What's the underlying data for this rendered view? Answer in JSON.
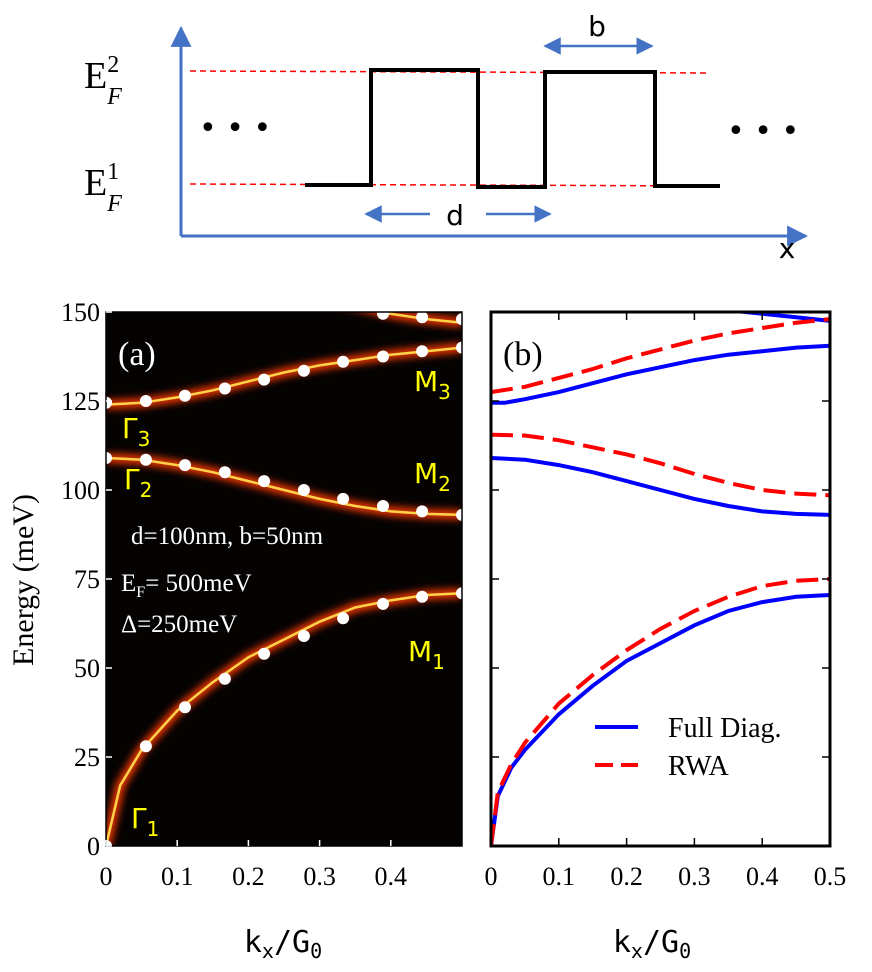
{
  "top_diagram": {
    "ef2_main": "E",
    "ef2_sup": "2",
    "ef2_sub": "F",
    "ef1_main": "E",
    "ef1_sup": "1",
    "ef1_sub": "F",
    "b_label": "b",
    "d_label": "d",
    "x_label": "x",
    "ellipsis": "• • •"
  },
  "colors": {
    "axis_blue": "#4472c4",
    "ref_red": "#ff0000",
    "profile_black": "#000000",
    "label_yellow": "#ffff00",
    "full_diag": "#0000ff",
    "rwa": "#ff0000"
  },
  "panel_a": {
    "panel_label": "(a)",
    "params_line1": "d=100nm, b=50nm",
    "params_line2_main": "E",
    "params_line2_sub": "F",
    "params_line2_rest": "= 500meV",
    "params_line3": "Δ=250meV",
    "ylabel": "Energy (meV)",
    "xlabel_main": "k",
    "xlabel_sub1": "x",
    "xlabel_mid": "/G",
    "xlabel_sub2": "0",
    "point_labels": [
      {
        "main": "Γ",
        "sub": "1"
      },
      {
        "main": "Γ",
        "sub": "2"
      },
      {
        "main": "Γ",
        "sub": "3"
      },
      {
        "main": "M",
        "sub": "1"
      },
      {
        "main": "M",
        "sub": "2"
      },
      {
        "main": "M",
        "sub": "3"
      }
    ]
  },
  "panel_b": {
    "panel_label": "(b)",
    "xlabel_main": "k",
    "xlabel_sub1": "x",
    "xlabel_mid": "/G",
    "xlabel_sub2": "0",
    "legend": [
      "Full Diag.",
      "RWA"
    ]
  },
  "chart_data": [
    {
      "type": "heatmap",
      "panel": "(a)",
      "xlabel": "kx/G0",
      "ylabel": "Energy (meV)",
      "xlim": [
        0,
        0.5
      ],
      "ylim": [
        0,
        150
      ],
      "xticks": [
        "0",
        "0.1",
        "0.2",
        "0.3",
        "0.4"
      ],
      "yticks": [
        "0",
        "25",
        "50",
        "75",
        "100",
        "125",
        "150"
      ],
      "bands": [
        {
          "x": [
            0,
            0.02,
            0.05,
            0.1,
            0.15,
            0.2,
            0.25,
            0.3,
            0.35,
            0.4,
            0.45,
            0.5
          ],
          "y": [
            0,
            17,
            27,
            38,
            46,
            53,
            58,
            63,
            67,
            69,
            70.5,
            71
          ]
        },
        {
          "x": [
            0,
            0.05,
            0.1,
            0.15,
            0.2,
            0.25,
            0.3,
            0.35,
            0.4,
            0.45,
            0.5
          ],
          "y": [
            109,
            108.5,
            107,
            105,
            102.5,
            100,
            97.5,
            95.5,
            94,
            93.3,
            93
          ]
        },
        {
          "x": [
            0,
            0.05,
            0.1,
            0.15,
            0.2,
            0.25,
            0.3,
            0.35,
            0.4,
            0.45,
            0.5
          ],
          "y": [
            124,
            124.5,
            126,
            128,
            130.5,
            133,
            135,
            136.5,
            138,
            139,
            140
          ]
        },
        {
          "x": [
            0.3,
            0.35,
            0.4,
            0.45,
            0.5
          ],
          "y": [
            154,
            152,
            149.5,
            148,
            147
          ]
        }
      ],
      "markers": [
        {
          "x": [
            0.0,
            0.056,
            0.111,
            0.167,
            0.222,
            0.278,
            0.333,
            0.389,
            0.444,
            0.5
          ],
          "y": [
            0,
            28,
            39,
            47,
            54,
            59,
            64,
            68,
            70,
            71
          ]
        },
        {
          "x": [
            0.0,
            0.056,
            0.111,
            0.167,
            0.222,
            0.278,
            0.333,
            0.389,
            0.444,
            0.5
          ],
          "y": [
            109,
            108.5,
            107,
            105,
            102.5,
            100,
            97.5,
            95.5,
            94,
            93
          ]
        },
        {
          "x": [
            0.0,
            0.056,
            0.111,
            0.167,
            0.222,
            0.278,
            0.333,
            0.389,
            0.444,
            0.5
          ],
          "y": [
            124.5,
            125,
            126.5,
            128.5,
            131,
            133.5,
            136,
            137.5,
            139,
            140
          ]
        },
        {
          "x": [
            0.389,
            0.444,
            0.5
          ],
          "y": [
            149.5,
            148.5,
            148
          ]
        }
      ]
    },
    {
      "type": "line",
      "panel": "(b)",
      "xlabel": "kx/G0",
      "xlim": [
        0,
        0.5
      ],
      "ylim": [
        0,
        150
      ],
      "xticks": [
        "0",
        "0.1",
        "0.2",
        "0.3",
        "0.4",
        "0.5"
      ],
      "series": [
        {
          "name": "Full Diag.",
          "style": "solid",
          "segments": [
            {
              "x": [
                0,
                0.01,
                0.03,
                0.05,
                0.1,
                0.15,
                0.2,
                0.25,
                0.3,
                0.35,
                0.4,
                0.45,
                0.5
              ],
              "y": [
                0,
                14,
                22,
                27,
                37,
                45,
                52,
                57,
                62,
                66,
                68.5,
                70,
                70.5
              ]
            },
            {
              "x": [
                0,
                0.05,
                0.1,
                0.15,
                0.2,
                0.25,
                0.3,
                0.35,
                0.4,
                0.45,
                0.5
              ],
              "y": [
                109,
                108.5,
                107,
                105,
                102.5,
                100,
                97.5,
                95.5,
                94,
                93.3,
                93
              ]
            },
            {
              "x": [
                0,
                0.02,
                0.05,
                0.1,
                0.15,
                0.2,
                0.25,
                0.3,
                0.35,
                0.4,
                0.45,
                0.5
              ],
              "y": [
                124.5,
                124.5,
                125.5,
                127.5,
                130,
                132.5,
                134.5,
                136.5,
                138,
                139,
                140,
                140.5
              ]
            },
            {
              "x": [
                0.35,
                0.4,
                0.45,
                0.5
              ],
              "y": [
                150.5,
                149.5,
                148.5,
                147.5
              ]
            }
          ]
        },
        {
          "name": "RWA",
          "style": "dashed",
          "segments": [
            {
              "x": [
                0,
                0.01,
                0.03,
                0.05,
                0.1,
                0.15,
                0.2,
                0.25,
                0.3,
                0.35,
                0.4,
                0.45,
                0.5
              ],
              "y": [
                0,
                15,
                23,
                29,
                40,
                48,
                55,
                61,
                66,
                70,
                73,
                74.5,
                75
              ]
            },
            {
              "x": [
                0,
                0.05,
                0.1,
                0.15,
                0.2,
                0.25,
                0.3,
                0.35,
                0.4,
                0.45,
                0.5
              ],
              "y": [
                115.5,
                115.3,
                114,
                112,
                110,
                107.5,
                104.5,
                102,
                100,
                99,
                98.5
              ]
            },
            {
              "x": [
                0,
                0.05,
                0.1,
                0.15,
                0.2,
                0.25,
                0.3,
                0.35,
                0.4,
                0.45,
                0.5
              ],
              "y": [
                127.5,
                129,
                131.5,
                134,
                137,
                139.5,
                142,
                144,
                145.5,
                147,
                148
              ]
            }
          ]
        }
      ]
    }
  ]
}
